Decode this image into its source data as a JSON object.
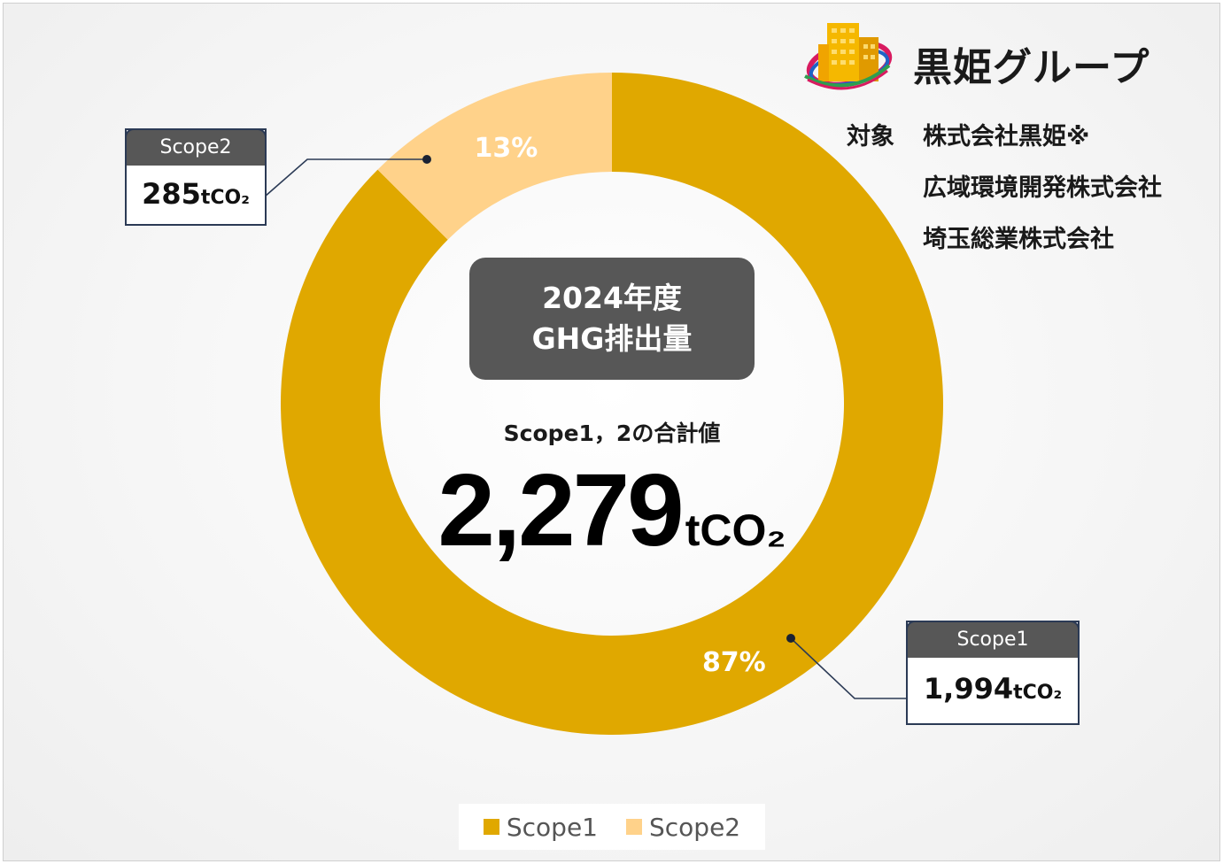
{
  "brand": {
    "name": "黒姫グループ",
    "logo_colors": [
      "#f5b800",
      "#e8a000",
      "#d81b60",
      "#1e63c6",
      "#2e9e4f"
    ]
  },
  "target": {
    "label": "対象",
    "companies": [
      "株式会社黒姫※",
      "広域環境開発株式会社",
      "埼玉総業株式会社"
    ]
  },
  "center": {
    "year_title": "2024年度",
    "subtitle": "GHG排出量",
    "sum_label": "Scope1，2の合計値",
    "total_value": "2,279",
    "total_unit": "tCO₂"
  },
  "callouts": {
    "scope2": {
      "head": "Scope2",
      "value": "285",
      "unit": "tCO₂"
    },
    "scope1": {
      "head": "Scope1",
      "value": "1,994",
      "unit": "tCO₂"
    }
  },
  "chart_data": {
    "type": "pie",
    "donut": true,
    "categories": [
      "Scope1",
      "Scope2"
    ],
    "values": [
      1994,
      285
    ],
    "percent_labels": [
      "87%",
      "13%"
    ],
    "colors": [
      "#e0a800",
      "#ffd28a"
    ],
    "unit": "tCO₂",
    "legend": {
      "position": "bottom",
      "entries": [
        "Scope1",
        "Scope2"
      ]
    }
  }
}
